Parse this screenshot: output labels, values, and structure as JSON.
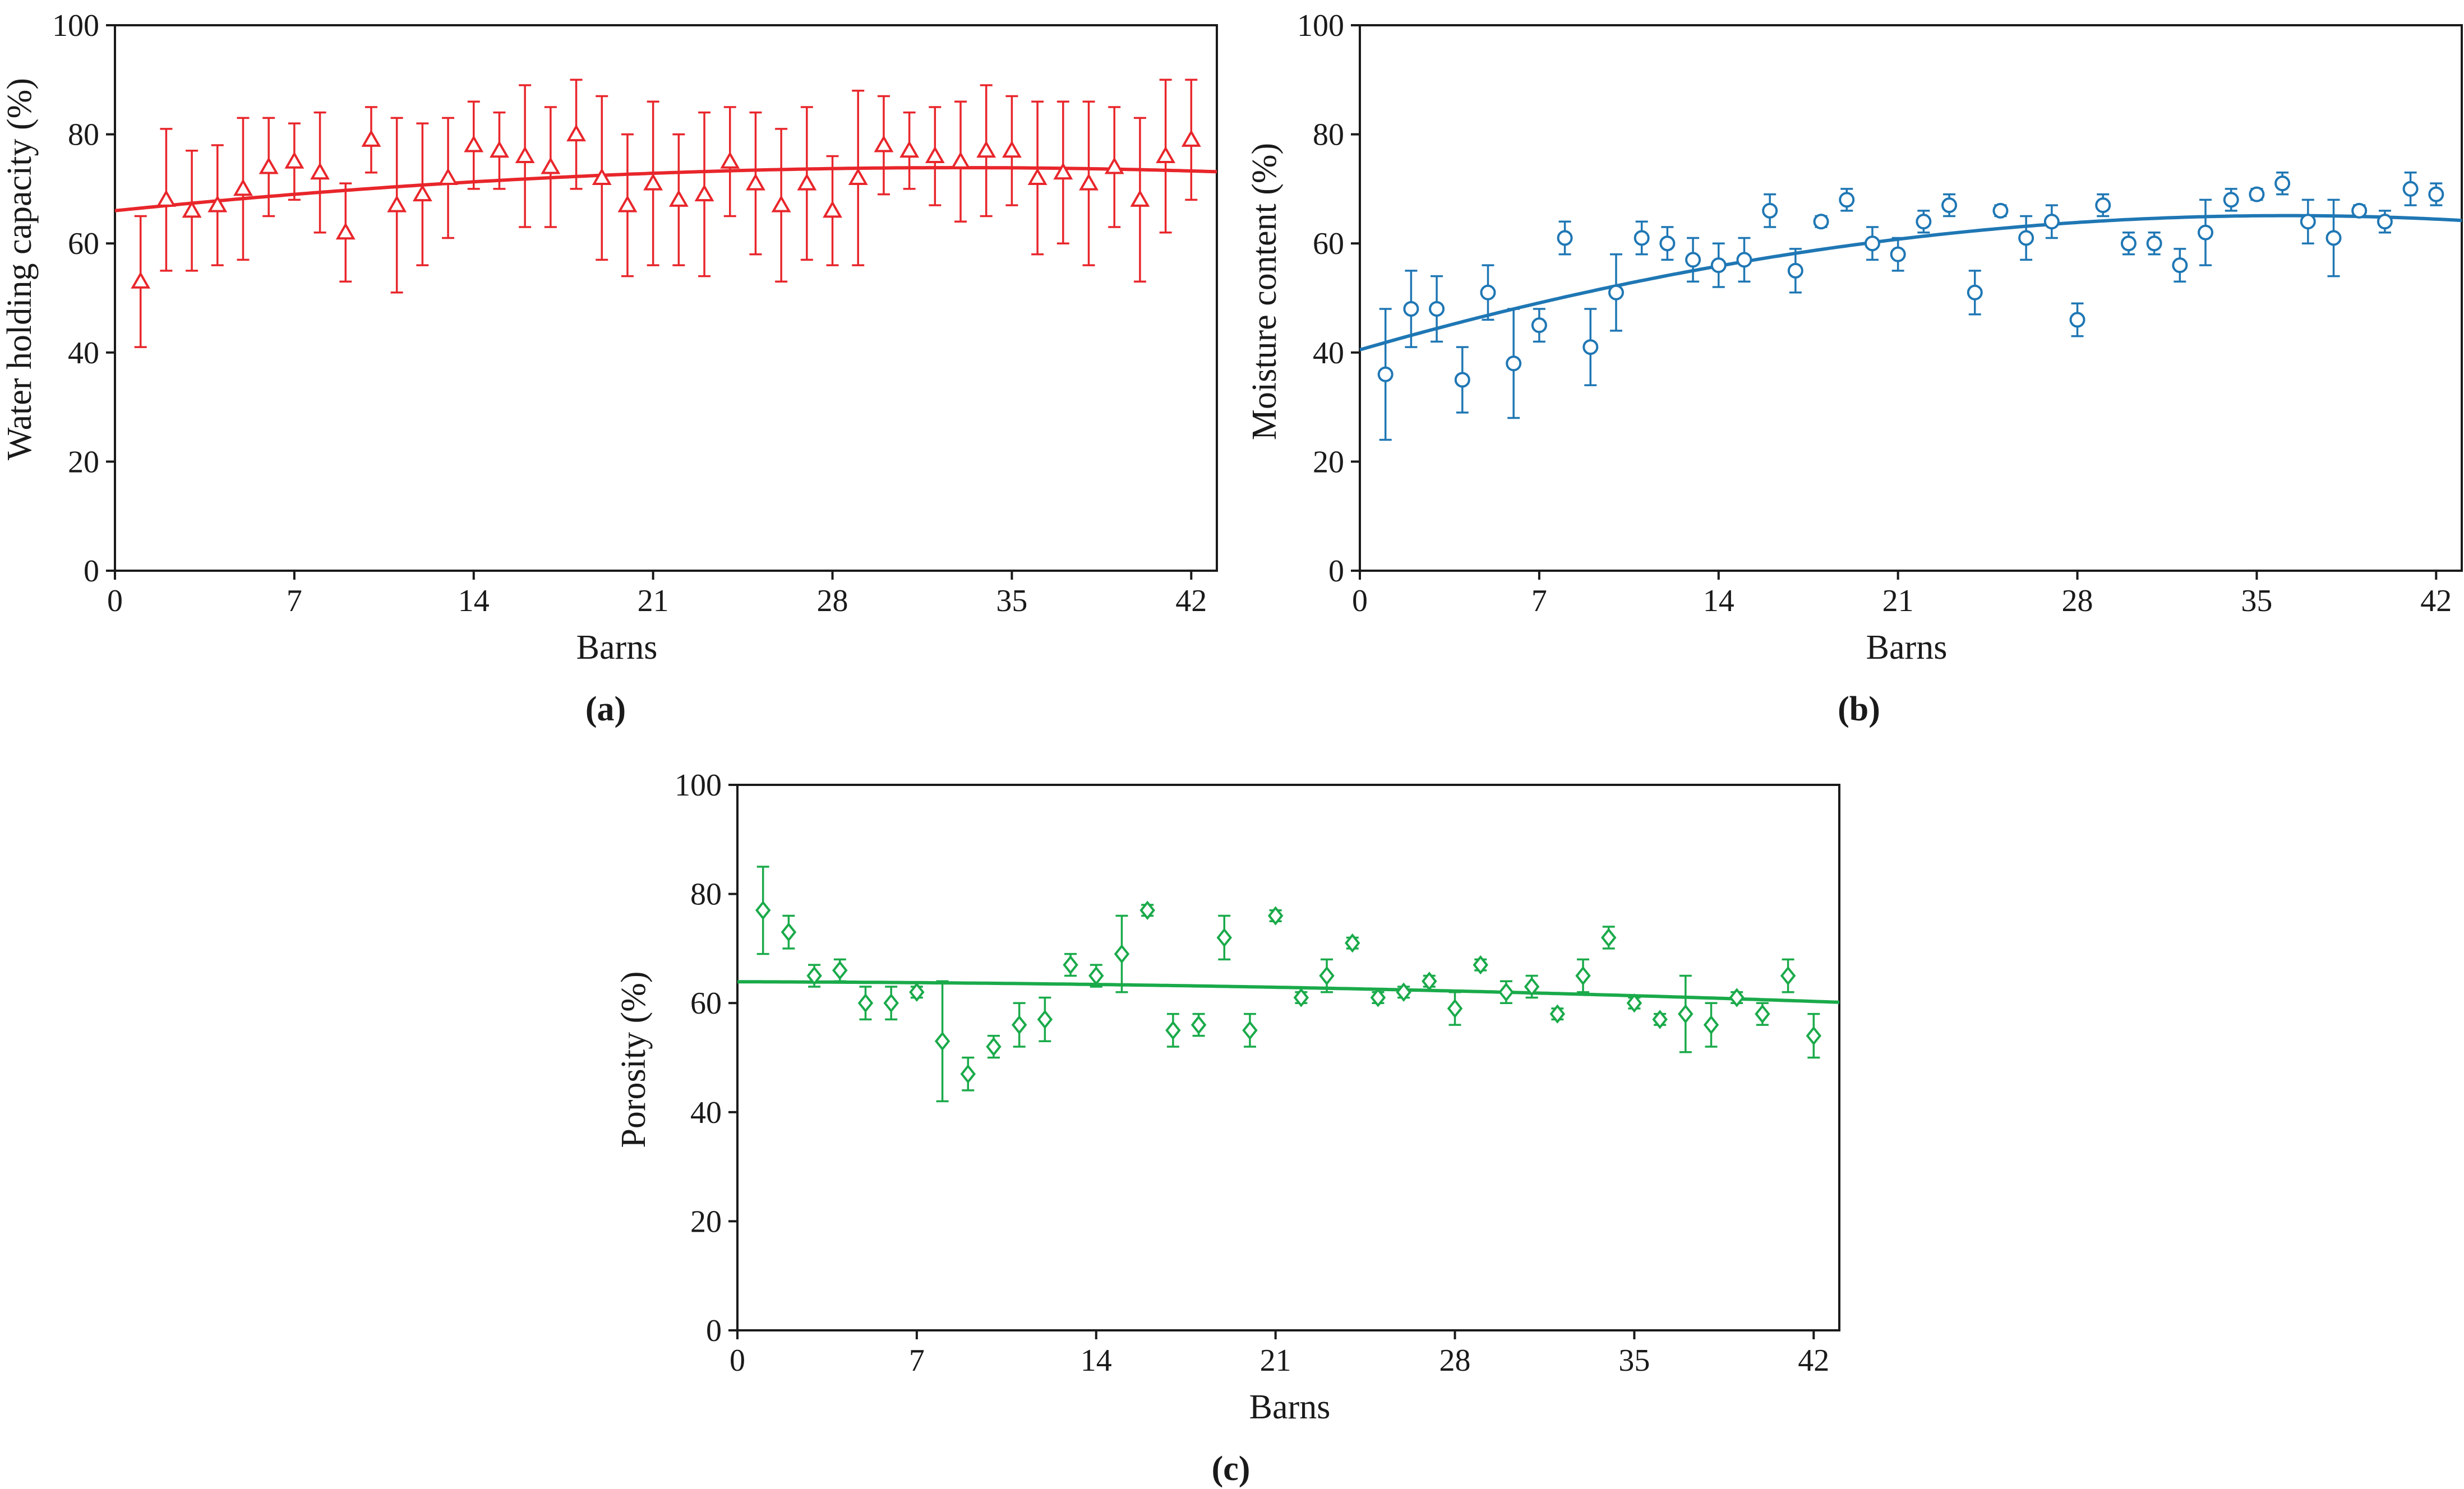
{
  "chart_data": [
    {
      "type": "scatter",
      "panel_label": "(a)",
      "xlabel": "Barns",
      "ylabel": "Water holding capacity (%)",
      "xlim": [
        0,
        43
      ],
      "ylim": [
        0,
        100
      ],
      "xticks": [
        0,
        7,
        14,
        21,
        28,
        35,
        42
      ],
      "yticks": [
        0,
        20,
        40,
        60,
        80,
        100
      ],
      "marker": "triangle",
      "color": "#e8262b",
      "series": [
        {
          "name": "Water holding capacity",
          "x": [
            1,
            2,
            3,
            4,
            5,
            6,
            7,
            8,
            9,
            10,
            11,
            12,
            13,
            14,
            15,
            16,
            17,
            18,
            19,
            20,
            21,
            22,
            23,
            24,
            25,
            26,
            27,
            28,
            29,
            30,
            31,
            32,
            33,
            34,
            35,
            36,
            37,
            38,
            39,
            40,
            41,
            42
          ],
          "y": [
            53,
            68,
            66,
            67,
            70,
            74,
            75,
            73,
            62,
            79,
            67,
            69,
            72,
            78,
            77,
            76,
            74,
            80,
            72,
            67,
            71,
            68,
            69,
            75,
            71,
            67,
            71,
            66,
            72,
            78,
            77,
            76,
            75,
            77,
            77,
            72,
            73,
            71,
            74,
            68,
            76,
            79
          ],
          "err": [
            12,
            13,
            11,
            11,
            13,
            9,
            7,
            11,
            9,
            6,
            16,
            13,
            11,
            8,
            7,
            13,
            11,
            10,
            15,
            13,
            15,
            12,
            15,
            10,
            13,
            14,
            14,
            10,
            16,
            9,
            7,
            9,
            11,
            12,
            10,
            14,
            13,
            15,
            11,
            15,
            14,
            11
          ]
        }
      ],
      "fit": {
        "type": "quadratic",
        "coefficients": [
          66,
          0.48,
          -0.0073
        ]
      }
    },
    {
      "type": "scatter",
      "panel_label": "(b)",
      "xlabel": "Barns",
      "ylabel": "Moisture content (%)",
      "xlim": [
        0,
        43
      ],
      "ylim": [
        0,
        100
      ],
      "xticks": [
        0,
        7,
        14,
        21,
        28,
        35,
        42
      ],
      "yticks": [
        0,
        20,
        40,
        60,
        80,
        100
      ],
      "marker": "circle",
      "color": "#1f77b4",
      "series": [
        {
          "name": "Moisture content",
          "x": [
            1,
            2,
            3,
            4,
            5,
            6,
            7,
            8,
            9,
            10,
            11,
            12,
            13,
            14,
            15,
            16,
            17,
            18,
            19,
            20,
            21,
            22,
            23,
            24,
            25,
            26,
            27,
            28,
            29,
            30,
            31,
            32,
            33,
            34,
            35,
            36,
            37,
            38,
            39,
            40,
            41,
            42
          ],
          "y": [
            36,
            48,
            48,
            35,
            51,
            38,
            45,
            61,
            41,
            51,
            61,
            60,
            57,
            56,
            57,
            66,
            55,
            64,
            68,
            60,
            58,
            64,
            67,
            51,
            66,
            61,
            64,
            46,
            67,
            60,
            60,
            56,
            62,
            68,
            69,
            71,
            64,
            61,
            66,
            64,
            70,
            69
          ],
          "err": [
            12,
            7,
            6,
            6,
            5,
            10,
            3,
            3,
            7,
            7,
            3,
            3,
            4,
            4,
            4,
            3,
            4,
            1,
            2,
            3,
            3,
            2,
            2,
            4,
            1,
            4,
            3,
            3,
            2,
            2,
            2,
            3,
            6,
            2,
            1,
            2,
            4,
            7,
            1,
            2,
            3,
            2
          ]
        }
      ],
      "fit": {
        "type": "quadratic",
        "coefficients": [
          40.5,
          1.36,
          -0.0188
        ]
      }
    },
    {
      "type": "scatter",
      "panel_label": "(c)",
      "xlabel": "Barns",
      "ylabel": "Porosity (%)",
      "xlim": [
        0,
        43
      ],
      "ylim": [
        0,
        100
      ],
      "xticks": [
        0,
        7,
        14,
        21,
        28,
        35,
        42
      ],
      "yticks": [
        0,
        20,
        40,
        60,
        80,
        100
      ],
      "marker": "diamond",
      "color": "#1aaa4a",
      "series": [
        {
          "name": "Porosity",
          "x": [
            1,
            2,
            3,
            4,
            5,
            6,
            7,
            8,
            9,
            10,
            11,
            12,
            13,
            14,
            15,
            16,
            17,
            18,
            19,
            20,
            21,
            22,
            23,
            24,
            25,
            26,
            27,
            28,
            29,
            30,
            31,
            32,
            33,
            34,
            35,
            36,
            37,
            38,
            39,
            40,
            41,
            42
          ],
          "y": [
            77,
            73,
            65,
            66,
            60,
            60,
            62,
            53,
            47,
            52,
            56,
            57,
            67,
            65,
            69,
            77,
            55,
            56,
            72,
            55,
            76,
            61,
            65,
            71,
            61,
            62,
            64,
            59,
            67,
            62,
            63,
            58,
            65,
            72,
            60,
            57,
            58,
            56,
            61,
            58,
            65,
            54
          ],
          "err": [
            8,
            3,
            2,
            2,
            3,
            3,
            1,
            11,
            3,
            2,
            4,
            4,
            2,
            2,
            7,
            1,
            3,
            2,
            4,
            3,
            1,
            1,
            3,
            1,
            1,
            1,
            1,
            3,
            1,
            2,
            2,
            1,
            3,
            2,
            1,
            1,
            7,
            4,
            1,
            2,
            3,
            4
          ]
        }
      ],
      "fit": {
        "type": "quadratic",
        "coefficients": [
          63.9,
          -0.01,
          -0.0018
        ]
      }
    }
  ]
}
